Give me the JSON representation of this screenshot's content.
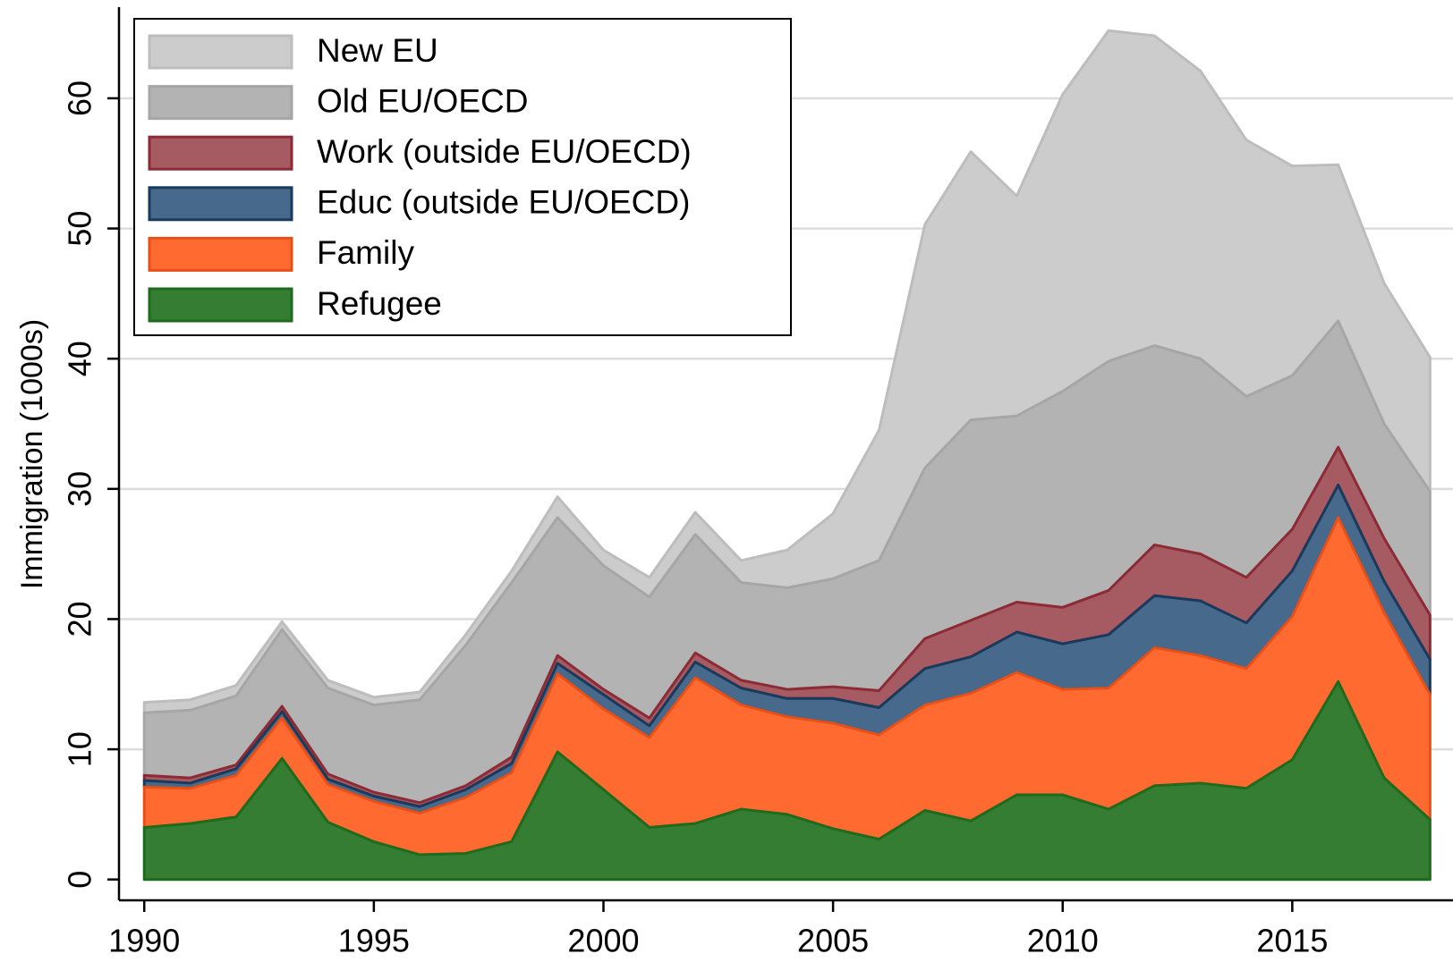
{
  "chart_data": {
    "type": "stacked_area",
    "y_label": "Immigration (1000s)",
    "x": [
      1990,
      1991,
      1992,
      1993,
      1994,
      1995,
      1996,
      1997,
      1998,
      1999,
      2000,
      2001,
      2002,
      2003,
      2004,
      2005,
      2006,
      2007,
      2008,
      2009,
      2010,
      2011,
      2012,
      2013,
      2014,
      2015,
      2016,
      2017,
      2018
    ],
    "xlim": [
      1989.45,
      2018.5
    ],
    "xticks": [
      1990,
      1995,
      2000,
      2005,
      2010,
      2015
    ],
    "ylim": [
      -1.6,
      67
    ],
    "yticks": [
      0,
      10,
      20,
      30,
      40,
      50,
      60
    ],
    "grid": true,
    "legend": "upper left",
    "series": [
      {
        "name": "New EU",
        "color": "#cccccc",
        "line_color": "#bdbdbd",
        "values": [
          0.8,
          0.8,
          0.8,
          0.6,
          0.6,
          0.6,
          0.6,
          0.8,
          0.9,
          1.6,
          1.2,
          1.5,
          1.7,
          1.7,
          2.9,
          5.0,
          10.0,
          18.7,
          20.6,
          16.9,
          22.8,
          25.4,
          23.8,
          22.1,
          19.7,
          16.1,
          12.0,
          10.8,
          10.3
        ]
      },
      {
        "name": "Old EU/OECD",
        "color": "#b3b3b3",
        "line_color": "#a6a6a6",
        "values": [
          4.8,
          5.2,
          5.3,
          5.9,
          6.6,
          6.7,
          7.9,
          10.8,
          13.4,
          10.6,
          9.5,
          9.3,
          9.1,
          7.5,
          7.8,
          8.3,
          10.0,
          13.1,
          15.4,
          14.3,
          16.6,
          17.6,
          15.3,
          15.0,
          13.9,
          11.8,
          9.7,
          8.8,
          9.5
        ]
      },
      {
        "name": "Work (outside EU/OECD)",
        "color": "#a65b62",
        "line_color": "#8c2b36",
        "values": [
          0.4,
          0.4,
          0.3,
          0.4,
          0.4,
          0.3,
          0.3,
          0.3,
          0.5,
          0.6,
          0.4,
          0.6,
          0.7,
          0.6,
          0.7,
          0.9,
          1.3,
          2.3,
          2.8,
          2.3,
          2.8,
          3.4,
          3.9,
          3.6,
          3.5,
          3.2,
          2.9,
          3.3,
          3.4
        ]
      },
      {
        "name": "Educ (outside EU/OECD)",
        "color": "#476a8c",
        "line_color": "#1a3a5c",
        "values": [
          0.5,
          0.4,
          0.5,
          0.5,
          0.4,
          0.4,
          0.5,
          0.6,
          0.7,
          0.8,
          1.1,
          0.9,
          1.2,
          1.3,
          1.4,
          1.9,
          2.1,
          2.8,
          2.8,
          3.1,
          3.5,
          4.1,
          4.0,
          4.2,
          3.5,
          3.5,
          2.5,
          2.4,
          2.7
        ]
      },
      {
        "name": "Family",
        "color": "#ff6a30",
        "line_color": "#e8501a",
        "values": [
          3.1,
          2.7,
          3.2,
          3.1,
          2.9,
          3.1,
          3.2,
          4.3,
          5.3,
          6.0,
          6.2,
          6.9,
          11.2,
          8.0,
          7.5,
          8.1,
          8.0,
          8.1,
          9.8,
          9.4,
          8.1,
          9.3,
          10.6,
          9.8,
          9.2,
          11.0,
          12.6,
          12.7,
          9.6
        ]
      },
      {
        "name": "Refugee",
        "color": "#357d32",
        "line_color": "#1e6b1e",
        "values": [
          4.0,
          4.3,
          4.8,
          9.3,
          4.4,
          2.9,
          1.9,
          2.0,
          2.9,
          9.8,
          6.9,
          4.0,
          4.3,
          5.4,
          5.0,
          3.9,
          3.1,
          5.3,
          4.5,
          6.5,
          6.5,
          5.4,
          7.2,
          7.4,
          7.0,
          9.2,
          15.2,
          7.8,
          4.6
        ]
      }
    ]
  }
}
